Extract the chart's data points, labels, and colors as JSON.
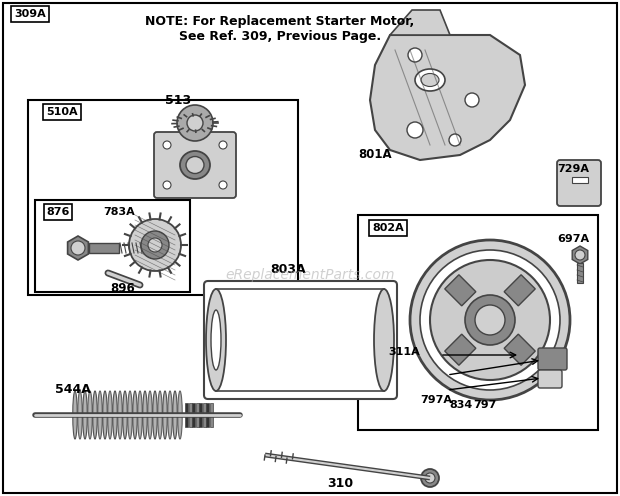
{
  "bg_color": "#ffffff",
  "line_color": "#000000",
  "gray_light": "#d0d0d0",
  "gray_mid": "#888888",
  "gray_dark": "#444444",
  "watermark": "eReplacementParts.com",
  "note_line1": "NOTE: For Replacement Starter Motor,",
  "note_line2": "See Ref. 309, Previous Page.",
  "fig_w": 6.2,
  "fig_h": 4.96,
  "dpi": 100
}
